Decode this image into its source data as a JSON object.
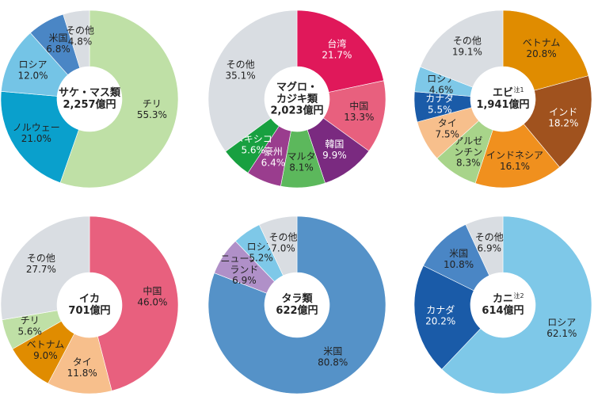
{
  "chart_data": [
    {
      "type": "pie",
      "title": "サケ・マス類",
      "total": "2,257億円",
      "categories": [
        "チリ",
        "ノルウェー",
        "ロシア",
        "米国",
        "その他"
      ],
      "values": [
        55.3,
        21.0,
        12.0,
        6.8,
        4.8
      ],
      "value_labels": [
        "55.3%",
        "21.0%",
        "12.0%",
        "6.8%",
        "4.8%"
      ],
      "colors": [
        "#bfe0a6",
        "#0aa0cc",
        "#74c4e6",
        "#4a86c5",
        "#d9dde2"
      ]
    },
    {
      "type": "pie",
      "title": "マグロ・\nカジキ類",
      "total": "2,023億円",
      "categories": [
        "台湾",
        "中国",
        "韓国",
        "マルタ",
        "豪州",
        "メキシコ",
        "その他"
      ],
      "values": [
        21.7,
        13.3,
        9.9,
        8.1,
        6.4,
        5.6,
        35.1
      ],
      "value_labels": [
        "21.7%",
        "13.3%",
        "9.9%",
        "8.1%",
        "6.4%",
        "5.6%",
        "35.1%"
      ],
      "colors": [
        "#e0185a",
        "#e8607e",
        "#7a2a80",
        "#5cb85c",
        "#9a3d8e",
        "#18a040",
        "#d9dde2"
      ]
    },
    {
      "type": "pie",
      "title": "エビ",
      "note": "注1",
      "total": "1,941億円",
      "categories": [
        "ベトナム",
        "インド",
        "インドネシア",
        "アルゼ\nンチン",
        "タイ",
        "カナダ",
        "ロシア",
        "その他"
      ],
      "values": [
        20.8,
        18.2,
        16.1,
        8.3,
        7.5,
        5.5,
        4.6,
        19.1
      ],
      "value_labels": [
        "20.8%",
        "18.2%",
        "16.1%",
        "8.3%",
        "7.5%",
        "5.5%",
        "4.6%",
        "19.1%"
      ],
      "colors": [
        "#e08c00",
        "#a0521e",
        "#f0901e",
        "#a8d48a",
        "#f7bf8c",
        "#1a5ba8",
        "#7ec8e8",
        "#d9dde2"
      ]
    },
    {
      "type": "pie",
      "title": "イカ",
      "total": "701億円",
      "categories": [
        "中国",
        "タイ",
        "ベトナム",
        "チリ",
        "その他"
      ],
      "values": [
        46.0,
        11.8,
        9.0,
        5.6,
        27.7
      ],
      "value_labels": [
        "46.0%",
        "11.8%",
        "9.0%",
        "5.6%",
        "27.7%"
      ],
      "colors": [
        "#e8607e",
        "#f7bf8c",
        "#e08c00",
        "#bfe0a6",
        "#d9dde2"
      ]
    },
    {
      "type": "pie",
      "title": "タラ類",
      "total": "622億円",
      "categories": [
        "米国",
        "ニュージー\nランド",
        "ロシア",
        "その他"
      ],
      "values": [
        80.8,
        6.9,
        5.2,
        7.0
      ],
      "value_labels": [
        "80.8%",
        "6.9%",
        "5.2%",
        "7.0%"
      ],
      "colors": [
        "#5592c8",
        "#b090c8",
        "#7ec8e8",
        "#d9dde2"
      ]
    },
    {
      "type": "pie",
      "title": "カニ",
      "note": "注2",
      "total": "614億円",
      "categories": [
        "ロシア",
        "カナダ",
        "米国",
        "その他"
      ],
      "values": [
        62.1,
        20.2,
        10.8,
        6.9
      ],
      "value_labels": [
        "62.1%",
        "20.2%",
        "10.8%",
        "6.9%"
      ],
      "colors": [
        "#7ec8e8",
        "#1a5ba8",
        "#4a86c5",
        "#d9dde2"
      ]
    }
  ]
}
